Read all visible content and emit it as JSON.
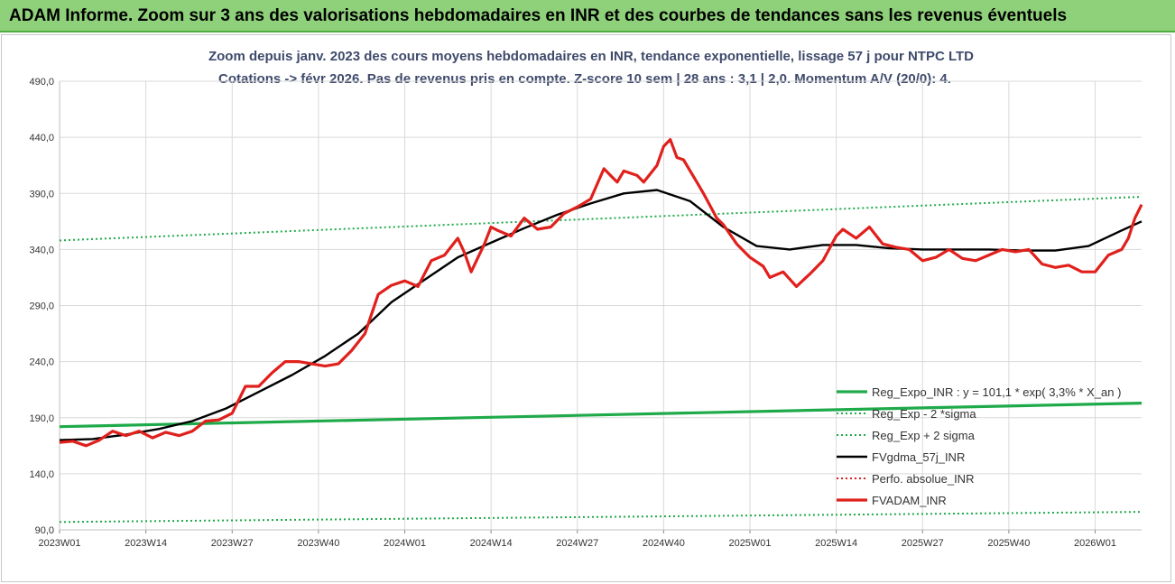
{
  "banner": {
    "title": "ADAM Informe. Zoom sur 3 ans des valorisations hebdomadaires en INR et des courbes de tendances sans les revenus éventuels"
  },
  "chart_data": {
    "type": "line",
    "title": "Zoom depuis janv. 2023 des cours moyens hebdomadaires en INR, tendance exponentielle, lissage 57 j pour NTPC LTD",
    "subtitle": "Cotations -> févr 2026.  Pas de revenus pris en compte. Z-score 10 sem | 28 ans : 3,1 | 2,0. Momentum A/V (20/0): 4.",
    "xlabel": "",
    "ylabel": "",
    "ylim": [
      90,
      490
    ],
    "xlim": [
      1,
      164
    ],
    "y_ticks": [
      "490,0",
      "440,0",
      "390,0",
      "340,0",
      "290,0",
      "240,0",
      "190,0",
      "140,0",
      "90,0"
    ],
    "y_tick_values": [
      490,
      440,
      390,
      340,
      290,
      240,
      190,
      140,
      90
    ],
    "x_ticks": [
      "2023W01",
      "2023W14",
      "2023W27",
      "2023W40",
      "2024W01",
      "2024W14",
      "2024W27",
      "2024W40",
      "2025W01",
      "2025W14",
      "2025W27",
      "2025W40",
      "2026W01"
    ],
    "x_tick_weeks": [
      1,
      14,
      27,
      40,
      53,
      66,
      79,
      92,
      105,
      118,
      131,
      144,
      157
    ],
    "grid": true,
    "legend_position": "bottom-right",
    "colors": {
      "reg_expo": "#1faa4a",
      "sigma": "#1faa4a",
      "fvgdma": "#000000",
      "perfo": "#e0201c",
      "fvadam": "#e0201c"
    },
    "series": [
      {
        "name": "Reg_Expo_INR : y = 101,1 * exp( 3,3% *  X_an )",
        "style": "solid-thick",
        "x": [
          1,
          164
        ],
        "values": [
          182,
          203
        ]
      },
      {
        "name": "Reg_Exp - 2 *sigma",
        "style": "dotted",
        "x": [
          1,
          164
        ],
        "values": [
          97,
          106
        ]
      },
      {
        "name": "Reg_Exp + 2 sigma",
        "style": "dotted",
        "x": [
          1,
          164
        ],
        "values": [
          348,
          387
        ]
      },
      {
        "name": "FVgdma_57j_INR",
        "style": "solid",
        "x": [
          1,
          6,
          11,
          16,
          21,
          26,
          31,
          36,
          41,
          46,
          51,
          56,
          61,
          66,
          71,
          76,
          81,
          86,
          91,
          96,
          101,
          106,
          111,
          116,
          121,
          126,
          131,
          136,
          141,
          146,
          151,
          156,
          161,
          164
        ],
        "values": [
          170,
          171,
          175,
          180,
          187,
          198,
          213,
          228,
          245,
          265,
          293,
          313,
          333,
          346,
          359,
          371,
          381,
          390,
          393,
          383,
          360,
          343,
          340,
          344,
          344,
          341,
          340,
          340,
          340,
          339,
          339,
          343,
          357,
          365
        ]
      },
      {
        "name": "Perfo. absolue_INR",
        "style": "dotted",
        "x": [],
        "values": []
      },
      {
        "name": "FVADAM_INR",
        "style": "solid-thick",
        "x": [
          1,
          3,
          5,
          7,
          9,
          11,
          13,
          15,
          17,
          19,
          21,
          23,
          25,
          27,
          29,
          31,
          33,
          35,
          37,
          39,
          41,
          43,
          45,
          47,
          49,
          51,
          53,
          55,
          57,
          59,
          61,
          62,
          63,
          65,
          66,
          67,
          69,
          71,
          73,
          75,
          77,
          79,
          81,
          83,
          84,
          85,
          86,
          88,
          89,
          91,
          92,
          93,
          94,
          95,
          97,
          98,
          100,
          101,
          103,
          105,
          107,
          108,
          110,
          112,
          114,
          116,
          118,
          119,
          121,
          123,
          125,
          127,
          129,
          131,
          133,
          135,
          137,
          139,
          141,
          143,
          145,
          147,
          149,
          151,
          153,
          155,
          157,
          159,
          161,
          162,
          163,
          164
        ],
        "values": [
          168,
          169,
          165,
          170,
          178,
          174,
          178,
          172,
          177,
          174,
          178,
          187,
          188,
          194,
          218,
          218,
          230,
          240,
          240,
          238,
          236,
          238,
          250,
          265,
          300,
          308,
          312,
          307,
          330,
          335,
          350,
          337,
          320,
          345,
          360,
          357,
          352,
          368,
          358,
          360,
          372,
          378,
          385,
          412,
          406,
          400,
          410,
          406,
          400,
          415,
          432,
          438,
          422,
          420,
          400,
          390,
          368,
          362,
          345,
          333,
          325,
          315,
          320,
          307,
          318,
          330,
          352,
          358,
          350,
          360,
          345,
          342,
          340,
          330,
          333,
          340,
          332,
          330,
          335,
          340,
          338,
          340,
          327,
          324,
          326,
          320,
          320,
          335,
          340,
          350,
          368,
          380
        ]
      }
    ]
  }
}
